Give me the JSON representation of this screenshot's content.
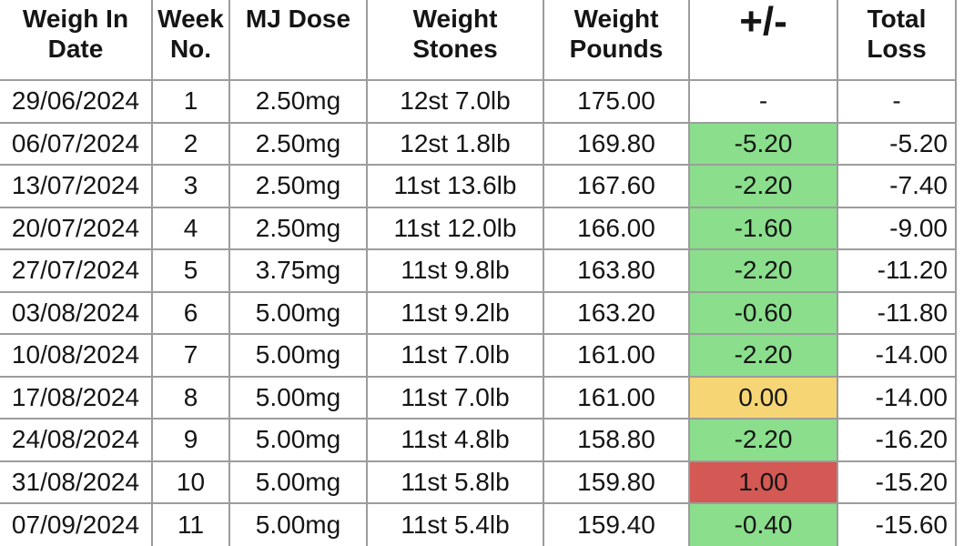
{
  "table": {
    "header": {
      "columns": [
        {
          "key": "date",
          "lines": [
            "Weigh In",
            "Date"
          ]
        },
        {
          "key": "week",
          "lines": [
            "Week",
            "No."
          ]
        },
        {
          "key": "dose",
          "lines": [
            "MJ Dose"
          ]
        },
        {
          "key": "stones",
          "lines": [
            "Weight",
            "Stones"
          ]
        },
        {
          "key": "pounds",
          "lines": [
            "Weight",
            "Pounds"
          ]
        },
        {
          "key": "change",
          "lines": [
            "+/-"
          ],
          "emphasis": true
        },
        {
          "key": "total",
          "lines": [
            "Total",
            "Loss"
          ]
        }
      ]
    },
    "rows": [
      {
        "date": "29/06/2024",
        "week": "1",
        "dose": "2.50mg",
        "stones": "12st 7.0lb",
        "pounds": "175.00",
        "change": "-",
        "change_status": "none",
        "total": "-",
        "total_align": "center"
      },
      {
        "date": "06/07/2024",
        "week": "2",
        "dose": "2.50mg",
        "stones": "12st 1.8lb",
        "pounds": "169.80",
        "change": "-5.20",
        "change_status": "loss",
        "total": "-5.20",
        "total_align": "right"
      },
      {
        "date": "13/07/2024",
        "week": "3",
        "dose": "2.50mg",
        "stones": "11st 13.6lb",
        "pounds": "167.60",
        "change": "-2.20",
        "change_status": "loss",
        "total": "-7.40",
        "total_align": "right"
      },
      {
        "date": "20/07/2024",
        "week": "4",
        "dose": "2.50mg",
        "stones": "11st 12.0lb",
        "pounds": "166.00",
        "change": "-1.60",
        "change_status": "loss",
        "total": "-9.00",
        "total_align": "right"
      },
      {
        "date": "27/07/2024",
        "week": "5",
        "dose": "3.75mg",
        "stones": "11st 9.8lb",
        "pounds": "163.80",
        "change": "-2.20",
        "change_status": "loss",
        "total": "-11.20",
        "total_align": "right"
      },
      {
        "date": "03/08/2024",
        "week": "6",
        "dose": "5.00mg",
        "stones": "11st 9.2lb",
        "pounds": "163.20",
        "change": "-0.60",
        "change_status": "loss",
        "total": "-11.80",
        "total_align": "right"
      },
      {
        "date": "10/08/2024",
        "week": "7",
        "dose": "5.00mg",
        "stones": "11st 7.0lb",
        "pounds": "161.00",
        "change": "-2.20",
        "change_status": "loss",
        "total": "-14.00",
        "total_align": "right"
      },
      {
        "date": "17/08/2024",
        "week": "8",
        "dose": "5.00mg",
        "stones": "11st 7.0lb",
        "pounds": "161.00",
        "change": "0.00",
        "change_status": "same",
        "total": "-14.00",
        "total_align": "right"
      },
      {
        "date": "24/08/2024",
        "week": "9",
        "dose": "5.00mg",
        "stones": "11st 4.8lb",
        "pounds": "158.80",
        "change": "-2.20",
        "change_status": "loss",
        "total": "-16.20",
        "total_align": "right"
      },
      {
        "date": "31/08/2024",
        "week": "10",
        "dose": "5.00mg",
        "stones": "11st 5.8lb",
        "pounds": "159.80",
        "change": "1.00",
        "change_status": "gain",
        "total": "-15.20",
        "total_align": "right"
      },
      {
        "date": "07/09/2024",
        "week": "11",
        "dose": "5.00mg",
        "stones": "11st 5.4lb",
        "pounds": "159.40",
        "change": "-0.40",
        "change_status": "loss",
        "total": "-15.60",
        "total_align": "right"
      }
    ],
    "status_colors": {
      "loss": "#8ADE8C",
      "same": "#F6D674",
      "gain": "#D45853"
    }
  }
}
